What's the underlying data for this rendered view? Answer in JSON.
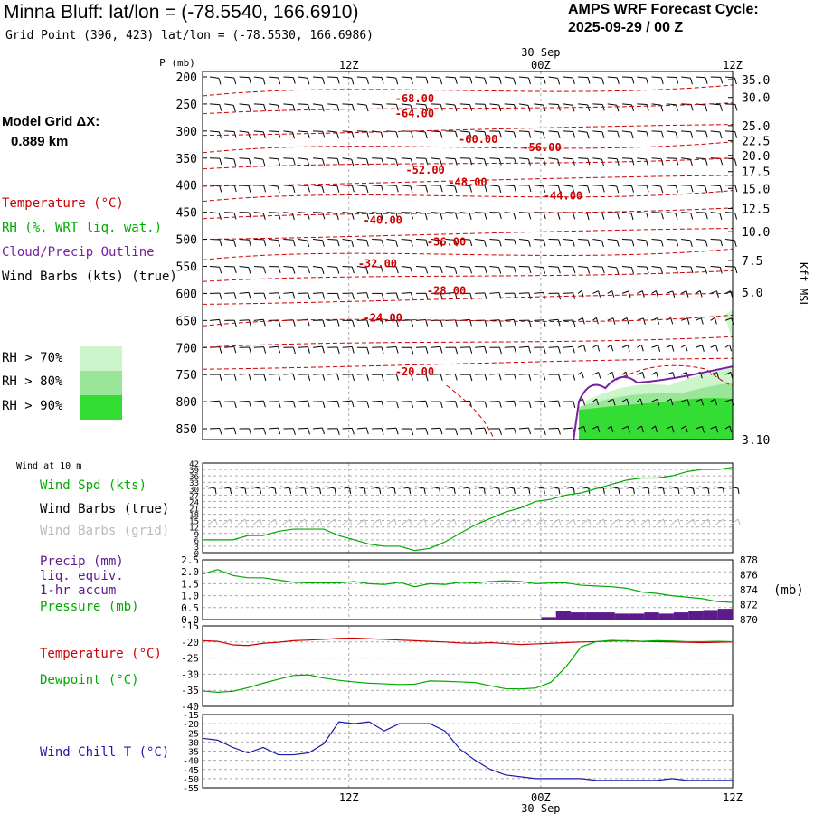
{
  "header": {
    "title": "Minna Bluff:  lat/lon = (-78.5540, 166.6910)",
    "grid_point": "Grid Point (396, 423) lat/lon = (-78.5530, 166.6986)",
    "cycle_label": "AMPS WRF Forecast Cycle:",
    "cycle_value": "2025-09-29 / 00  Z",
    "grid_dx_label": "Model Grid ΔX:",
    "grid_dx_value": "0.889 km"
  },
  "legend_top": {
    "temperature": "Temperature (°C)",
    "rh": "RH (%, WRT liq. wat.)",
    "cloud": "Cloud/Precip Outline",
    "wind": "Wind Barbs (kts) (true)",
    "rh70": "RH > 70%",
    "rh80": "RH > 80%",
    "rh90": "RH > 90%"
  },
  "legend_panels": {
    "wind10m": "Wind at 10 m",
    "wind_spd": "Wind Spd (kts)",
    "wind_barbs_true": "Wind Barbs (true)",
    "wind_barbs_grid": "Wind Barbs (grid)",
    "precip1": "Precip (mm)",
    "precip2": "liq. equiv.",
    "precip3": "1-hr accum",
    "pressure": "Pressure (mb)",
    "pressure_unit": "(mb)",
    "temperature": "Temperature (°C)",
    "dewpoint": "Dewpoint (°C)",
    "windchill": "Wind Chill T (°C)"
  },
  "colors": {
    "temp": "#cc0000",
    "rh": "#00aa00",
    "cloud": "#7a1fa2",
    "wind": "#000000",
    "wind_grid": "#bbbbbb",
    "windchill": "#1a1aaa",
    "rh70": "#ccf5cc",
    "rh80": "#99e699",
    "rh90": "#33dd33",
    "precip": "#5c1a8c"
  },
  "chart_data": [
    {
      "type": "line",
      "name": "cross-section",
      "title": "Vertical profile time series",
      "ylabel": "P (mb)",
      "y2label": "Kft MSL",
      "x_top_labels": [
        "12Z",
        "00Z",
        "12Z"
      ],
      "date_label": "30 Sep",
      "pressure_ticks": [
        200,
        250,
        300,
        350,
        400,
        450,
        500,
        550,
        600,
        650,
        700,
        750,
        800,
        850
      ],
      "ylim": [
        200,
        870
      ],
      "height_ticks": [
        "35.0",
        "30.0",
        "25.0",
        "22.5",
        "20.0",
        "17.5",
        "15.0",
        "12.5",
        "10.0",
        "7.5",
        "5.0",
        "3.10"
      ],
      "height_tick_pressures": [
        205,
        238,
        290,
        318,
        345,
        375,
        406,
        443,
        486,
        539,
        598,
        870
      ],
      "isotherm_labels": [
        {
          "label": "-68.00",
          "t": 0.4,
          "p": 240
        },
        {
          "label": "-64.00",
          "t": 0.4,
          "p": 268
        },
        {
          "label": "-60.00",
          "t": 0.52,
          "p": 315
        },
        {
          "label": "-56.00",
          "t": 0.64,
          "p": 330
        },
        {
          "label": "-52.00",
          "t": 0.42,
          "p": 372
        },
        {
          "label": "-48.00",
          "t": 0.5,
          "p": 395
        },
        {
          "label": "-44.00",
          "t": 0.68,
          "p": 420
        },
        {
          "label": "-40.00",
          "t": 0.34,
          "p": 465
        },
        {
          "label": "-36.00",
          "t": 0.46,
          "p": 505
        },
        {
          "label": "-32.00",
          "t": 0.33,
          "p": 545
        },
        {
          "label": "-28.00",
          "t": 0.46,
          "p": 595
        },
        {
          "label": "-24.00",
          "t": 0.34,
          "p": 645
        },
        {
          "label": "-20.00",
          "t": 0.4,
          "p": 745
        }
      ]
    },
    {
      "type": "line",
      "name": "wind-10m",
      "ylabel_ticks": [
        "42",
        "39",
        "36",
        "33",
        "30",
        "27",
        "24",
        "21",
        "18",
        "15",
        "12",
        "9",
        "6",
        "3",
        "0"
      ],
      "ylim": [
        0,
        42
      ],
      "series": [
        {
          "name": "Wind Spd (kts)",
          "color": "#00aa00",
          "values": [
            6,
            6,
            6,
            8,
            8,
            10,
            11,
            11,
            11,
            8,
            6,
            4,
            3,
            3,
            1,
            2,
            5,
            9,
            13,
            16,
            19,
            21,
            24,
            25,
            27,
            28,
            30,
            32,
            34,
            35,
            35,
            36,
            38,
            39,
            39,
            40
          ]
        }
      ]
    },
    {
      "type": "line",
      "name": "precip-pressure",
      "y_left_ticks": [
        "2.5",
        "2.0",
        "1.5",
        "1.0",
        "0.5",
        "0.0"
      ],
      "y_right_ticks": [
        "878",
        "876",
        "874",
        "872",
        "870"
      ],
      "ylim_precip": [
        0,
        2.5
      ],
      "ylim_pressure": [
        870,
        878
      ],
      "series": [
        {
          "name": "Pressure (mb)",
          "color": "#00aa00",
          "values": [
            876.1,
            876.7,
            875.9,
            875.6,
            875.6,
            875.3,
            875.0,
            874.9,
            874.9,
            874.9,
            875.1,
            874.8,
            874.7,
            875.0,
            874.4,
            874.8,
            874.7,
            875.0,
            874.9,
            875.1,
            875.2,
            875.1,
            874.8,
            874.9,
            874.9,
            874.6,
            874.5,
            874.4,
            874.2,
            873.7,
            873.5,
            873.2,
            873.0,
            872.8,
            872.4,
            872.3
          ]
        },
        {
          "name": "Precip (mm)",
          "color": "#5c1a8c",
          "type": "bar",
          "values": [
            0,
            0,
            0,
            0,
            0,
            0,
            0,
            0,
            0,
            0,
            0,
            0,
            0,
            0,
            0,
            0,
            0,
            0,
            0,
            0,
            0,
            0,
            0,
            0.1,
            0.35,
            0.3,
            0.3,
            0.3,
            0.25,
            0.25,
            0.3,
            0.25,
            0.3,
            0.35,
            0.4,
            0.45
          ]
        }
      ]
    },
    {
      "type": "line",
      "name": "temp-dewpoint",
      "y_ticks": [
        "-15",
        "-20",
        "-25",
        "-30",
        "-35",
        "-40"
      ],
      "ylim": [
        -40,
        -15
      ],
      "series": [
        {
          "name": "Temperature (°C)",
          "color": "#cc0000",
          "values": [
            -19.6,
            -19.8,
            -20.9,
            -21.1,
            -20.4,
            -20.1,
            -19.6,
            -19.4,
            -19.2,
            -18.9,
            -18.8,
            -19.0,
            -19.2,
            -19.4,
            -19.6,
            -19.8,
            -20.0,
            -20.3,
            -20.4,
            -20.2,
            -20.5,
            -20.8,
            -20.6,
            -20.4,
            -20.2,
            -20.0,
            -19.9,
            -19.7,
            -19.6,
            -19.8,
            -19.9,
            -20.0,
            -20.1,
            -20.2,
            -20.1,
            -20.0
          ]
        },
        {
          "name": "Dewpoint (°C)",
          "color": "#00aa00",
          "values": [
            -35.2,
            -35.6,
            -35.3,
            -34.2,
            -32.8,
            -31.6,
            -30.4,
            -30.2,
            -31.2,
            -31.9,
            -32.4,
            -32.8,
            -33.0,
            -33.2,
            -33.1,
            -32.1,
            -32.2,
            -32.4,
            -32.6,
            -33.6,
            -34.5,
            -34.6,
            -34.3,
            -32.5,
            -27.7,
            -21.5,
            -19.9,
            -19.5,
            -19.7,
            -19.8,
            -19.6,
            -19.7,
            -19.9,
            -19.9,
            -19.8,
            -19.9
          ]
        }
      ]
    },
    {
      "type": "line",
      "name": "wind-chill",
      "y_ticks": [
        "-15",
        "-20",
        "-25",
        "-30",
        "-35",
        "-40",
        "-45",
        "-50",
        "-55"
      ],
      "ylim": [
        -55,
        -15
      ],
      "series": [
        {
          "name": "Wind Chill T (°C)",
          "color": "#1a1aaa",
          "values": [
            -28,
            -29,
            -33,
            -36,
            -33,
            -37,
            -37,
            -36,
            -31,
            -19,
            -20,
            -19,
            -24,
            -20,
            -20,
            -20,
            -24,
            -34,
            -40,
            -45,
            -48,
            -49,
            -50,
            -50,
            -50,
            -50,
            -51,
            -51,
            -51,
            -51,
            -51,
            -50,
            -51,
            -51,
            -51,
            -51
          ]
        }
      ]
    }
  ],
  "x_axis": {
    "labels": [
      "12Z",
      "00Z",
      "12Z"
    ],
    "date_label": "30 Sep"
  }
}
